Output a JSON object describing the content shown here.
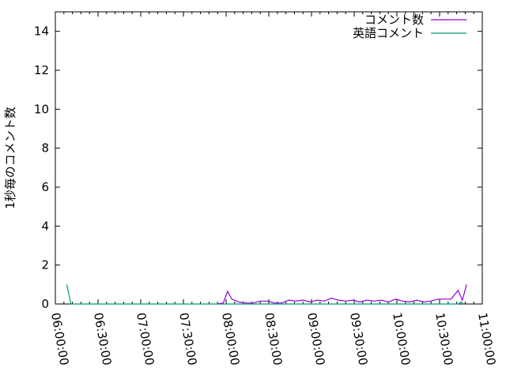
{
  "chart_data": {
    "type": "line",
    "title": "",
    "xlabel": "",
    "ylabel": "1秒毎のコメント数",
    "xlim": [
      "06:00:00",
      "11:00:00"
    ],
    "ylim": [
      0,
      15
    ],
    "x_ticks": [
      "06:00:00",
      "06:30:00",
      "07:00:00",
      "07:30:00",
      "08:00:00",
      "08:30:00",
      "09:00:00",
      "09:30:00",
      "10:00:00",
      "10:30:00",
      "11:00:00"
    ],
    "y_ticks": [
      0,
      2,
      4,
      6,
      8,
      10,
      12,
      14
    ],
    "grid": false,
    "legend_position": "top-right",
    "series": [
      {
        "name": "コメント数",
        "color": "#9400d3",
        "x": [
          "07:54:00",
          "07:58:00",
          "08:01:00",
          "08:04:00",
          "08:09:00",
          "08:14:00",
          "08:19:00",
          "08:24:00",
          "08:29:00",
          "08:34:00",
          "08:39:00",
          "08:44:00",
          "08:49:00",
          "08:54:00",
          "08:59:00",
          "09:04:00",
          "09:09:00",
          "09:14:00",
          "09:19:00",
          "09:24:00",
          "09:29:00",
          "09:34:00",
          "09:39:00",
          "09:44:00",
          "09:49:00",
          "09:54:00",
          "09:59:00",
          "10:04:00",
          "10:09:00",
          "10:14:00",
          "10:19:00",
          "10:24:00",
          "10:29:00",
          "10:34:00",
          "10:38:00",
          "10:43:00",
          "10:46:00",
          "10:49:00"
        ],
        "values": [
          0,
          0.05,
          0.65,
          0.25,
          0.1,
          0.05,
          0.05,
          0.15,
          0.15,
          0.05,
          0.05,
          0.2,
          0.15,
          0.2,
          0.1,
          0.2,
          0.15,
          0.3,
          0.2,
          0.15,
          0.2,
          0.1,
          0.2,
          0.15,
          0.2,
          0.1,
          0.25,
          0.15,
          0.1,
          0.2,
          0.1,
          0.15,
          0.25,
          0.25,
          0.25,
          0.7,
          0.2,
          1.0
        ]
      },
      {
        "name": "英語コメント",
        "color": "#009e73",
        "x": [
          "06:08:00",
          "06:11:00",
          "10:43:00",
          "10:45:00",
          "10:47:00"
        ],
        "values": [
          1,
          0,
          0,
          0.1,
          0
        ]
      }
    ]
  }
}
